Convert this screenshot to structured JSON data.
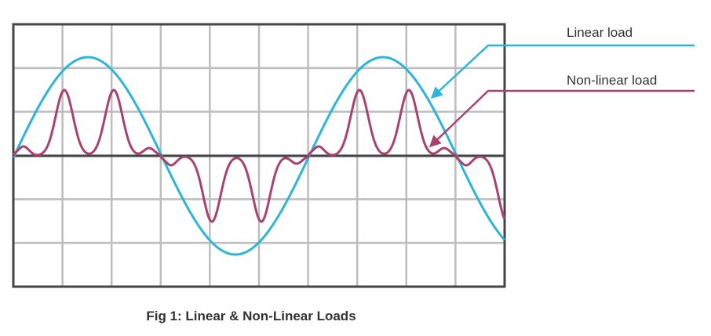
{
  "labels": {
    "linear": "Linear load",
    "nonlinear": "Non-linear load"
  },
  "caption": "Fig 1: Linear & Non-Linear Loads"
}
